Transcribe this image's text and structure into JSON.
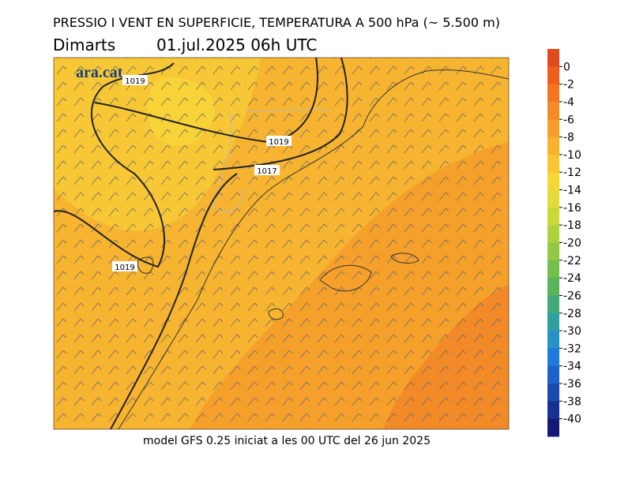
{
  "header": {
    "title": "PRESSIO I VENT EN SUPERFICIE, TEMPERATURA A 500 hPa (~ 5.500 m)",
    "day": "Dimarts",
    "datetime": "01.jul.2025 06h UTC"
  },
  "logo": "ara.cat",
  "isobar_labels": [
    "1019",
    "1019",
    "1017",
    "1019"
  ],
  "colorbar": {
    "ticks": [
      0,
      -2,
      -4,
      -6,
      -8,
      -10,
      -12,
      -14,
      -16,
      -18,
      -20,
      -22,
      -24,
      -26,
      -28,
      -30,
      -32,
      -34,
      -36,
      -38,
      -40
    ],
    "colors": [
      "#e04a1c",
      "#ee5f1e",
      "#f37522",
      "#f68a26",
      "#f79e2a",
      "#f8b22e",
      "#f8c630",
      "#f4d634",
      "#e4da38",
      "#cad83a",
      "#aed23e",
      "#92c842",
      "#74be4c",
      "#5ab45c",
      "#44aa7a",
      "#2ea0a2",
      "#2692c8",
      "#207ade",
      "#1c62c8",
      "#1a4aae",
      "#183292",
      "#141a74"
    ]
  },
  "footer": "model GFS 0.25 iniciat a les 00 UTC del 26 jun 2025"
}
